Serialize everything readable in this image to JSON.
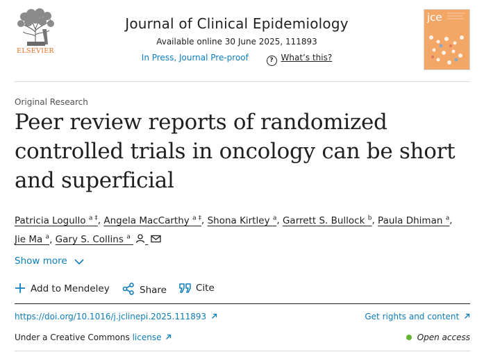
{
  "header": {
    "publisher": "ELSEVIER",
    "journal_title": "Journal of Clinical Epidemiology",
    "availability": "Available online 30 June 2025, 111893",
    "status": "In Press, Journal Pre-proof",
    "whats_this": "What’s this?",
    "cover_label": "jce"
  },
  "article": {
    "type": "Original Research",
    "title": "Peer review reports of randomized controlled trials in oncology can be short and superficial",
    "authors": [
      {
        "name": "Patricia Logullo",
        "aff": "a ‡"
      },
      {
        "name": "Angela MacCarthy",
        "aff": "a ‡"
      },
      {
        "name": "Shona Kirtley",
        "aff": "a"
      },
      {
        "name": "Garrett S. Bullock",
        "aff": "b"
      },
      {
        "name": "Paula Dhiman",
        "aff": "a"
      },
      {
        "name": "Jie Ma",
        "aff": "a"
      },
      {
        "name": "Gary S. Collins",
        "aff": "a"
      }
    ]
  },
  "show_more": "Show more",
  "actions": {
    "mendeley": "Add to Mendeley",
    "share": "Share",
    "cite": "Cite"
  },
  "links": {
    "doi": "https://doi.org/10.1016/j.jclinepi.2025.111893",
    "rights": "Get rights and content",
    "license_prefix": "Under a Creative Commons",
    "license": "license",
    "open_access": "Open access"
  },
  "colors": {
    "link": "#0c7dbb",
    "publisher_orange": "#e8701a",
    "open_access_dot": "#65b32e"
  }
}
